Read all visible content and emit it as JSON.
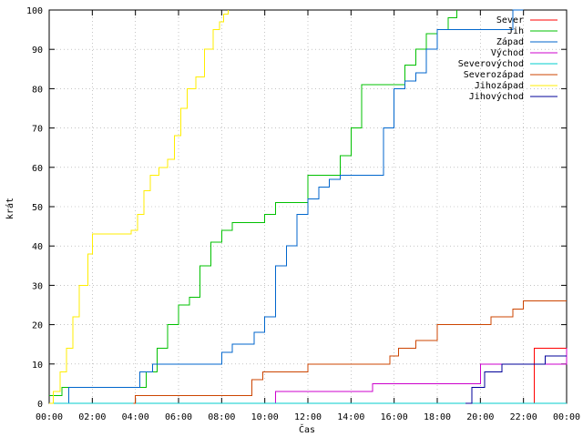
{
  "chart_data": {
    "type": "line",
    "title": "",
    "xlabel": "Čas",
    "ylabel": "krát",
    "xlim": [
      0,
      24
    ],
    "ylim": [
      0,
      100
    ],
    "x_ticks": [
      "00:00",
      "02:00",
      "04:00",
      "06:00",
      "08:00",
      "10:00",
      "12:00",
      "14:00",
      "16:00",
      "18:00",
      "20:00",
      "22:00",
      "00:00"
    ],
    "y_ticks": [
      "0",
      "10",
      "20",
      "30",
      "40",
      "50",
      "60",
      "70",
      "80",
      "90",
      "100"
    ],
    "grid": true,
    "legend_position": "top-right",
    "series": [
      {
        "name": "Sever",
        "color": "#ff0000",
        "step": true,
        "x": [
          22.3,
          22.5,
          24
        ],
        "y": [
          0,
          14,
          14
        ]
      },
      {
        "name": "Jih",
        "color": "#00c000",
        "step": true,
        "x": [
          0,
          0.6,
          4.2,
          4.5,
          5.0,
          5.5,
          6.0,
          6.5,
          7.0,
          7.5,
          8.0,
          8.5,
          9.0,
          10.0,
          10.5,
          11.0,
          12.0,
          13.0,
          13.5,
          14.0,
          14.5,
          15.0,
          16.0,
          16.5,
          17.0,
          17.5,
          18.0,
          18.5,
          18.9
        ],
        "y": [
          2,
          4,
          4,
          8,
          14,
          20,
          25,
          27,
          35,
          41,
          44,
          46,
          46,
          48,
          51,
          51,
          58,
          58,
          63,
          70,
          81,
          81,
          81,
          86,
          90,
          94,
          95,
          98,
          100
        ]
      },
      {
        "name": "Západ",
        "color": "#0066cc",
        "step": true,
        "x": [
          0,
          0.9,
          4.2,
          4.8,
          5.5,
          7.0,
          8.0,
          8.5,
          9.0,
          9.5,
          10.0,
          10.5,
          11.0,
          11.5,
          12.0,
          12.5,
          13.0,
          13.5,
          14.0,
          15.0,
          15.5,
          16.0,
          16.5,
          17.0,
          17.5,
          18.0,
          20.0,
          21.5,
          22.0
        ],
        "y": [
          0,
          4,
          8,
          10,
          10,
          10,
          13,
          15,
          15,
          18,
          22,
          35,
          40,
          48,
          52,
          55,
          57,
          58,
          58,
          58,
          70,
          80,
          82,
          84,
          90,
          95,
          95,
          100,
          100
        ]
      },
      {
        "name": "Východ",
        "color": "#cc00cc",
        "step": true,
        "x": [
          10.3,
          10.5,
          14.6,
          15.0,
          19.6,
          20.0,
          21.0,
          24
        ],
        "y": [
          0,
          3,
          3,
          5,
          5,
          10,
          10,
          14
        ]
      },
      {
        "name": "Severovýchod",
        "color": "#00cccc",
        "step": true,
        "x": [
          0,
          24
        ],
        "y": [
          0,
          0
        ]
      },
      {
        "name": "Severozápad",
        "color": "#cc4400",
        "step": true,
        "x": [
          3.9,
          4.0,
          9.1,
          9.4,
          9.9,
          10.0,
          12.0,
          14.0,
          15.8,
          16.2,
          17.0,
          18.0,
          20.0,
          20.5,
          21.5,
          22.0,
          24
        ],
        "y": [
          0,
          2,
          2,
          6,
          8,
          8,
          10,
          10,
          12,
          14,
          16,
          20,
          20,
          22,
          24,
          26,
          26
        ]
      },
      {
        "name": "Jihozápad",
        "color": "#ffee00",
        "step": true,
        "x": [
          0,
          0.2,
          0.5,
          0.8,
          1.1,
          1.4,
          1.8,
          2.0,
          3.0,
          3.8,
          4.1,
          4.4,
          4.7,
          5.1,
          5.5,
          5.8,
          6.1,
          6.4,
          6.8,
          7.2,
          7.6,
          7.9,
          8.1,
          8.3
        ],
        "y": [
          0,
          3,
          8,
          14,
          22,
          30,
          38,
          43,
          43,
          44,
          48,
          54,
          58,
          60,
          62,
          68,
          75,
          80,
          83,
          90,
          95,
          97,
          99,
          100
        ]
      },
      {
        "name": "Jihovýchod",
        "color": "#000099",
        "step": true,
        "x": [
          19.3,
          19.6,
          20.2,
          21.0,
          21.5,
          22.0,
          23.0,
          24
        ],
        "y": [
          0,
          4,
          8,
          10,
          10,
          10,
          12,
          12
        ]
      }
    ]
  }
}
